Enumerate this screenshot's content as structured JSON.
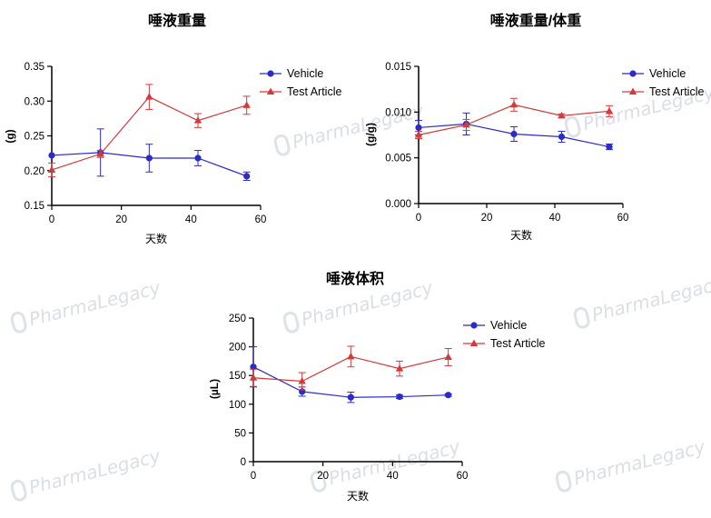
{
  "watermark": {
    "text": "PharmaLegacy"
  },
  "chart_data": [
    {
      "type": "line",
      "title": "唾液重量",
      "xlabel": "天数",
      "ylabel": "(g)",
      "xlim": [
        0,
        60
      ],
      "ylim": [
        0.15,
        0.35
      ],
      "xticks": [
        0,
        20,
        40,
        60
      ],
      "xtick_labels": [
        "0",
        "20",
        "40",
        "60"
      ],
      "yticks": [
        0.15,
        0.2,
        0.25,
        0.3,
        0.35
      ],
      "ytick_labels": [
        "0.15",
        "0.20",
        "0.25",
        "0.30",
        "0.35"
      ],
      "x": [
        0,
        14,
        28,
        42,
        56
      ],
      "legend_position": "right",
      "series": [
        {
          "name": "Vehicle",
          "color": "#2b2bc8",
          "marker": "circle",
          "values": [
            0.222,
            0.226,
            0.218,
            0.218,
            0.192
          ],
          "errors": [
            0,
            0.034,
            0.02,
            0.011,
            0.006
          ]
        },
        {
          "name": "Test Article",
          "color": "#d43a3a",
          "marker": "triangle",
          "values": [
            0.201,
            0.224,
            0.306,
            0.272,
            0.294
          ],
          "errors": [
            0.01,
            0.005,
            0.018,
            0.01,
            0.013
          ]
        }
      ]
    },
    {
      "type": "line",
      "title": "唾液重量/体重",
      "xlabel": "天数",
      "ylabel": "(g/g)",
      "xlim": [
        0,
        60
      ],
      "ylim": [
        0,
        0.015
      ],
      "xticks": [
        0,
        20,
        40,
        60
      ],
      "xtick_labels": [
        "0",
        "20",
        "40",
        "60"
      ],
      "yticks": [
        0,
        0.005,
        0.01,
        0.015
      ],
      "ytick_labels": [
        "0.000",
        "0.005",
        "0.010",
        "0.015"
      ],
      "x": [
        0,
        14,
        28,
        42,
        56
      ],
      "legend_position": "right",
      "series": [
        {
          "name": "Vehicle",
          "color": "#2b2bc8",
          "marker": "circle",
          "values": [
            0.0083,
            0.0087,
            0.0076,
            0.0073,
            0.0062
          ],
          "errors": [
            0.0008,
            0.0012,
            0.0008,
            0.0006,
            0.0003
          ]
        },
        {
          "name": "Test Article",
          "color": "#d43a3a",
          "marker": "triangle",
          "values": [
            0.0075,
            0.0086,
            0.0108,
            0.0096,
            0.0101
          ],
          "errors": [
            0.0004,
            0.0006,
            0.0007,
            0.0002,
            0.0006
          ]
        }
      ]
    },
    {
      "type": "line",
      "title": "唾液体积",
      "xlabel": "天数",
      "ylabel": "(µL)",
      "xlim": [
        0,
        60
      ],
      "ylim": [
        0,
        250
      ],
      "xticks": [
        0,
        20,
        40,
        60
      ],
      "xtick_labels": [
        "0",
        "20",
        "40",
        "60"
      ],
      "yticks": [
        0,
        50,
        100,
        150,
        200,
        250
      ],
      "ytick_labels": [
        "0",
        "50",
        "100",
        "150",
        "200",
        "250"
      ],
      "x": [
        0,
        14,
        28,
        42,
        56
      ],
      "legend_position": "right",
      "series": [
        {
          "name": "Vehicle",
          "color": "#2b2bc8",
          "marker": "circle",
          "values": [
            165,
            122,
            112,
            113,
            116
          ],
          "errors": [
            35,
            8,
            9,
            3,
            2
          ]
        },
        {
          "name": "Test Article",
          "color": "#d43a3a",
          "marker": "triangle",
          "values": [
            146,
            140,
            183,
            162,
            182
          ],
          "errors": [
            15,
            15,
            18,
            13,
            15
          ]
        }
      ]
    }
  ]
}
